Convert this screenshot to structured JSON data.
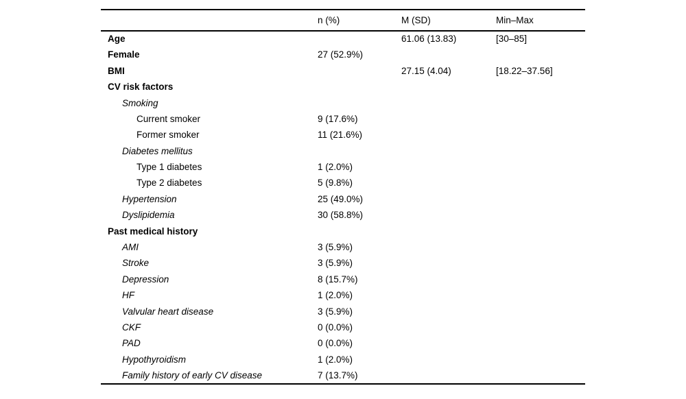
{
  "table": {
    "columns": [
      "",
      "n (%)",
      "M (SD)",
      "Min–Max"
    ],
    "rows": [
      {
        "label": "Age",
        "style": "bold",
        "indent": 0,
        "n": "",
        "msd": "61.06 (13.83)",
        "minmax": "[30–85]"
      },
      {
        "label": "Female",
        "style": "bold",
        "indent": 0,
        "n": "27 (52.9%)",
        "msd": "",
        "minmax": ""
      },
      {
        "label": "BMI",
        "style": "bold",
        "indent": 0,
        "n": "",
        "msd": "27.15 (4.04)",
        "minmax": "[18.22–37.56]"
      },
      {
        "label": "CV risk factors",
        "style": "bold",
        "indent": 0,
        "n": "",
        "msd": "",
        "minmax": ""
      },
      {
        "label": "Smoking",
        "style": "italic",
        "indent": 1,
        "n": "",
        "msd": "",
        "minmax": ""
      },
      {
        "label": "Current smoker",
        "style": "normal",
        "indent": 2,
        "n": "9 (17.6%)",
        "msd": "",
        "minmax": ""
      },
      {
        "label": "Former smoker",
        "style": "normal",
        "indent": 2,
        "n": "11 (21.6%)",
        "msd": "",
        "minmax": ""
      },
      {
        "label": "Diabetes mellitus",
        "style": "italic",
        "indent": 1,
        "n": "",
        "msd": "",
        "minmax": ""
      },
      {
        "label": "Type 1 diabetes",
        "style": "normal",
        "indent": 2,
        "n": "1 (2.0%)",
        "msd": "",
        "minmax": ""
      },
      {
        "label": "Type 2 diabetes",
        "style": "normal",
        "indent": 2,
        "n": "5 (9.8%)",
        "msd": "",
        "minmax": ""
      },
      {
        "label": "Hypertension",
        "style": "italic",
        "indent": 1,
        "n": "25 (49.0%)",
        "msd": "",
        "minmax": ""
      },
      {
        "label": "Dyslipidemia",
        "style": "italic",
        "indent": 1,
        "n": "30 (58.8%)",
        "msd": "",
        "minmax": ""
      },
      {
        "label": "Past medical history",
        "style": "bold",
        "indent": 0,
        "n": "",
        "msd": "",
        "minmax": ""
      },
      {
        "label": "AMI",
        "style": "italic",
        "indent": 1,
        "n": "3 (5.9%)",
        "msd": "",
        "minmax": ""
      },
      {
        "label": "Stroke",
        "style": "italic",
        "indent": 1,
        "n": "3 (5.9%)",
        "msd": "",
        "minmax": ""
      },
      {
        "label": "Depression",
        "style": "italic",
        "indent": 1,
        "n": "8 (15.7%)",
        "msd": "",
        "minmax": ""
      },
      {
        "label": "HF",
        "style": "italic",
        "indent": 1,
        "n": "1 (2.0%)",
        "msd": "",
        "minmax": ""
      },
      {
        "label": "Valvular heart disease",
        "style": "italic",
        "indent": 1,
        "n": "3 (5.9%)",
        "msd": "",
        "minmax": ""
      },
      {
        "label": "CKF",
        "style": "italic",
        "indent": 1,
        "n": "0 (0.0%)",
        "msd": "",
        "minmax": ""
      },
      {
        "label": "PAD",
        "style": "italic",
        "indent": 1,
        "n": "0 (0.0%)",
        "msd": "",
        "minmax": ""
      },
      {
        "label": "Hypothyroidism",
        "style": "italic",
        "indent": 1,
        "n": "1 (2.0%)",
        "msd": "",
        "minmax": ""
      },
      {
        "label": "Family history of early CV disease",
        "style": "italic",
        "indent": 1,
        "n": "7 (13.7%)",
        "msd": "",
        "minmax": ""
      }
    ]
  }
}
